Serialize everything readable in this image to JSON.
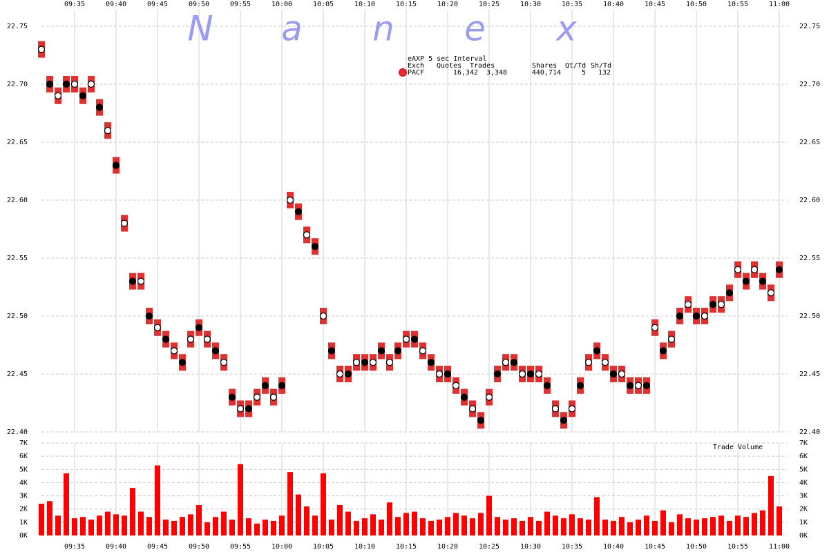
{
  "chart_data": [
    {
      "type": "scatter",
      "watermark": [
        "N",
        "a",
        "n",
        "e",
        "x"
      ],
      "legend_title": "eAXP 5 sec Interval",
      "legend_table": {
        "header": [
          "Exch",
          "Quotes",
          "Trades",
          "Shares",
          "Qt/Td",
          "Sh/Td"
        ],
        "rows": [
          [
            "PACF",
            "16,342",
            "3,348",
            "440,714",
            "5",
            "132"
          ]
        ]
      },
      "xlim": [
        571,
        661
      ],
      "xticks": [
        {
          "value": 575,
          "label": "09:35"
        },
        {
          "value": 580,
          "label": "09:40"
        },
        {
          "value": 585,
          "label": "09:45"
        },
        {
          "value": 590,
          "label": "09:50"
        },
        {
          "value": 595,
          "label": "09:55"
        },
        {
          "value": 600,
          "label": "10:00"
        },
        {
          "value": 605,
          "label": "10:05"
        },
        {
          "value": 610,
          "label": "10:10"
        },
        {
          "value": 615,
          "label": "10:15"
        },
        {
          "value": 620,
          "label": "10:20"
        },
        {
          "value": 625,
          "label": "10:25"
        },
        {
          "value": 630,
          "label": "10:30"
        },
        {
          "value": 635,
          "label": "10:35"
        },
        {
          "value": 640,
          "label": "10:40"
        },
        {
          "value": 645,
          "label": "10:45"
        },
        {
          "value": 650,
          "label": "10:50"
        },
        {
          "value": 655,
          "label": "10:55"
        },
        {
          "value": 660,
          "label": "11:00"
        }
      ],
      "ylim": [
        22.4,
        22.76
      ],
      "yticks": [
        {
          "value": 22.4,
          "label": "22.40"
        },
        {
          "value": 22.45,
          "label": "22.45"
        },
        {
          "value": 22.5,
          "label": "22.50"
        },
        {
          "value": 22.55,
          "label": "22.55"
        },
        {
          "value": 22.6,
          "label": "22.60"
        },
        {
          "value": 22.65,
          "label": "22.65"
        },
        {
          "value": 22.7,
          "label": "22.70"
        },
        {
          "value": 22.75,
          "label": "22.75"
        }
      ],
      "grid": true,
      "x": [
        571,
        572,
        573,
        574,
        575,
        576,
        577,
        578,
        579,
        580,
        581,
        582,
        583,
        584,
        585,
        586,
        587,
        588,
        589,
        590,
        591,
        592,
        593,
        594,
        595,
        596,
        597,
        598,
        599,
        600,
        601,
        602,
        603,
        604,
        605,
        606,
        607,
        608,
        609,
        610,
        611,
        612,
        613,
        614,
        615,
        616,
        617,
        618,
        619,
        620,
        621,
        622,
        623,
        624,
        625,
        626,
        627,
        628,
        629,
        630,
        631,
        632,
        633,
        634,
        635,
        636,
        637,
        638,
        639,
        640,
        641,
        642,
        643,
        644,
        645,
        646,
        647,
        648,
        649,
        650,
        651,
        652,
        653,
        654,
        655,
        656,
        657,
        658,
        659,
        660
      ],
      "series": [
        {
          "name": "PACF",
          "color": "#e03030",
          "values": [
            22.73,
            22.7,
            22.69,
            22.7,
            22.7,
            22.69,
            22.7,
            22.68,
            22.66,
            22.63,
            22.58,
            22.53,
            22.53,
            22.5,
            22.49,
            22.48,
            22.47,
            22.46,
            22.48,
            22.49,
            22.48,
            22.47,
            22.46,
            22.43,
            22.42,
            22.42,
            22.43,
            22.44,
            22.43,
            22.44,
            22.6,
            22.59,
            22.57,
            22.56,
            22.5,
            22.47,
            22.45,
            22.45,
            22.46,
            22.46,
            22.46,
            22.47,
            22.46,
            22.47,
            22.48,
            22.48,
            22.47,
            22.46,
            22.45,
            22.45,
            22.44,
            22.43,
            22.42,
            22.41,
            22.43,
            22.45,
            22.46,
            22.46,
            22.45,
            22.45,
            22.45,
            22.44,
            22.42,
            22.41,
            22.42,
            22.44,
            22.46,
            22.47,
            22.46,
            22.45,
            22.45,
            22.44,
            22.44,
            22.44,
            22.49,
            22.47,
            22.48,
            22.5,
            22.51,
            22.5,
            22.5,
            22.51,
            22.51,
            22.52,
            22.54,
            22.53,
            22.54,
            22.53,
            22.52,
            22.54
          ]
        }
      ]
    },
    {
      "type": "bar",
      "title": "Trade Volume",
      "xlim": [
        571,
        661
      ],
      "xticks": [
        {
          "value": 575,
          "label": "09:35"
        },
        {
          "value": 580,
          "label": "09:40"
        },
        {
          "value": 585,
          "label": "09:45"
        },
        {
          "value": 590,
          "label": "09:50"
        },
        {
          "value": 595,
          "label": "09:55"
        },
        {
          "value": 600,
          "label": "10:00"
        },
        {
          "value": 605,
          "label": "10:05"
        },
        {
          "value": 610,
          "label": "10:10"
        },
        {
          "value": 615,
          "label": "10:15"
        },
        {
          "value": 620,
          "label": "10:20"
        },
        {
          "value": 625,
          "label": "10:25"
        },
        {
          "value": 630,
          "label": "10:30"
        },
        {
          "value": 635,
          "label": "10:35"
        },
        {
          "value": 640,
          "label": "10:40"
        },
        {
          "value": 645,
          "label": "10:45"
        },
        {
          "value": 650,
          "label": "10:50"
        },
        {
          "value": 655,
          "label": "10:55"
        },
        {
          "value": 660,
          "label": "11:00"
        }
      ],
      "ylim": [
        0,
        7000
      ],
      "yticks": [
        {
          "value": 0,
          "label": "0K"
        },
        {
          "value": 1000,
          "label": "1K"
        },
        {
          "value": 2000,
          "label": "2K"
        },
        {
          "value": 3000,
          "label": "3K"
        },
        {
          "value": 4000,
          "label": "4K"
        },
        {
          "value": 5000,
          "label": "5K"
        },
        {
          "value": 6000,
          "label": "6K"
        },
        {
          "value": 7000,
          "label": "7K"
        }
      ],
      "x": [
        571,
        572,
        573,
        574,
        575,
        576,
        577,
        578,
        579,
        580,
        581,
        582,
        583,
        584,
        585,
        586,
        587,
        588,
        589,
        590,
        591,
        592,
        593,
        594,
        595,
        596,
        597,
        598,
        599,
        600,
        601,
        602,
        603,
        604,
        605,
        606,
        607,
        608,
        609,
        610,
        611,
        612,
        613,
        614,
        615,
        616,
        617,
        618,
        619,
        620,
        621,
        622,
        623,
        624,
        625,
        626,
        627,
        628,
        629,
        630,
        631,
        632,
        633,
        634,
        635,
        636,
        637,
        638,
        639,
        640,
        641,
        642,
        643,
        644,
        645,
        646,
        647,
        648,
        649,
        650,
        651,
        652,
        653,
        654,
        655,
        656,
        657,
        658,
        659,
        660
      ],
      "color": "#ff0000",
      "values": [
        2400,
        2600,
        1500,
        4700,
        1300,
        1400,
        1200,
        1500,
        1800,
        1600,
        1500,
        3600,
        1800,
        1400,
        5300,
        1200,
        1100,
        1400,
        1600,
        2300,
        1000,
        1400,
        1800,
        1200,
        5400,
        1300,
        900,
        1200,
        1100,
        1500,
        4800,
        3100,
        2200,
        1500,
        4700,
        1200,
        2300,
        1800,
        1100,
        1300,
        1600,
        1200,
        2500,
        1400,
        1700,
        1800,
        1300,
        1100,
        1200,
        1400,
        1700,
        1500,
        1300,
        1700,
        3000,
        1400,
        1200,
        1300,
        1100,
        1400,
        1100,
        1800,
        1500,
        1300,
        1600,
        1300,
        1200,
        2900,
        1200,
        1100,
        1400,
        1000,
        1200,
        1500,
        1100,
        1900,
        1000,
        1600,
        1300,
        1200,
        1300,
        1400,
        1500,
        1100,
        1500,
        1400,
        1700,
        1900,
        4500,
        2200
      ]
    }
  ]
}
